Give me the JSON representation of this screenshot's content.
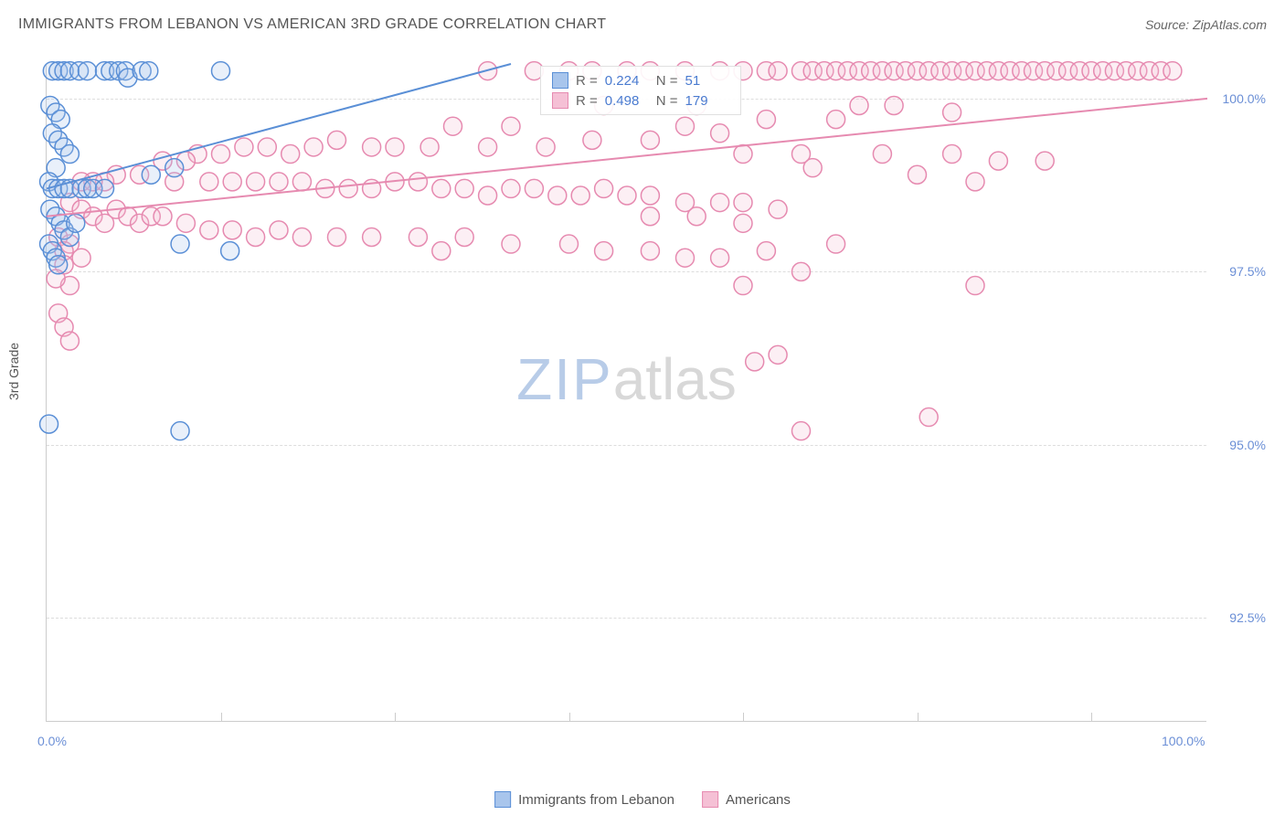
{
  "title": "IMMIGRANTS FROM LEBANON VS AMERICAN 3RD GRADE CORRELATION CHART",
  "source": "Source: ZipAtlas.com",
  "y_axis_label": "3rd Grade",
  "watermark": {
    "zip": "ZIP",
    "atlas": "atlas"
  },
  "chart": {
    "type": "scatter",
    "xlim": [
      0,
      100
    ],
    "ylim": [
      91,
      100.5
    ],
    "x_ticks": [
      0,
      100
    ],
    "x_tick_labels": [
      "0.0%",
      "100.0%"
    ],
    "x_minor_ticks": [
      15,
      30,
      45,
      60,
      75,
      90
    ],
    "y_ticks": [
      92.5,
      95.0,
      97.5,
      100.0
    ],
    "y_tick_labels": [
      "92.5%",
      "95.0%",
      "97.5%",
      "100.0%"
    ],
    "background_color": "#ffffff",
    "grid_color": "#dddddd",
    "marker_radius": 10,
    "marker_stroke_width": 1.5,
    "marker_fill_opacity": 0.25,
    "trend_line_width": 2
  },
  "series": [
    {
      "name": "Immigrants from Lebanon",
      "color_stroke": "#5a8fd6",
      "color_fill": "#a8c5ec",
      "R": "0.224",
      "N": "51",
      "trend": {
        "x1": 0,
        "y1": 98.7,
        "x2": 40,
        "y2": 100.5
      },
      "points": [
        [
          0.5,
          100.4
        ],
        [
          1,
          100.4
        ],
        [
          1.5,
          100.4
        ],
        [
          2,
          100.4
        ],
        [
          2.8,
          100.4
        ],
        [
          3.5,
          100.4
        ],
        [
          5,
          100.4
        ],
        [
          5.5,
          100.4
        ],
        [
          6.2,
          100.4
        ],
        [
          6.8,
          100.4
        ],
        [
          7,
          100.3
        ],
        [
          8.2,
          100.4
        ],
        [
          8.8,
          100.4
        ],
        [
          15,
          100.4
        ],
        [
          0.3,
          99.9
        ],
        [
          0.8,
          99.8
        ],
        [
          1.2,
          99.7
        ],
        [
          0.5,
          99.5
        ],
        [
          1,
          99.4
        ],
        [
          1.5,
          99.3
        ],
        [
          2,
          99.2
        ],
        [
          0.8,
          99.0
        ],
        [
          0.2,
          98.8
        ],
        [
          0.5,
          98.7
        ],
        [
          1,
          98.7
        ],
        [
          1.5,
          98.7
        ],
        [
          2,
          98.7
        ],
        [
          3,
          98.7
        ],
        [
          3.5,
          98.7
        ],
        [
          4,
          98.7
        ],
        [
          5,
          98.7
        ],
        [
          9,
          98.9
        ],
        [
          11,
          99.0
        ],
        [
          0.3,
          98.4
        ],
        [
          0.8,
          98.3
        ],
        [
          1.2,
          98.2
        ],
        [
          1.5,
          98.1
        ],
        [
          2,
          98.0
        ],
        [
          2.5,
          98.2
        ],
        [
          11.5,
          97.9
        ],
        [
          15.8,
          97.8
        ],
        [
          0.2,
          97.9
        ],
        [
          0.5,
          97.8
        ],
        [
          0.8,
          97.7
        ],
        [
          1,
          97.6
        ],
        [
          0.2,
          95.3
        ],
        [
          11.5,
          95.2
        ]
      ]
    },
    {
      "name": "Americans",
      "color_stroke": "#e68ab0",
      "color_fill": "#f5c0d5",
      "R": "0.498",
      "N": "179",
      "trend": {
        "x1": 0,
        "y1": 98.3,
        "x2": 100,
        "y2": 100.0
      },
      "points": [
        [
          38,
          100.4
        ],
        [
          42,
          100.4
        ],
        [
          45,
          100.4
        ],
        [
          47,
          100.4
        ],
        [
          50,
          100.4
        ],
        [
          52,
          100.4
        ],
        [
          55,
          100.4
        ],
        [
          58,
          100.4
        ],
        [
          60,
          100.4
        ],
        [
          62,
          100.4
        ],
        [
          63,
          100.4
        ],
        [
          65,
          100.4
        ],
        [
          66,
          100.4
        ],
        [
          67,
          100.4
        ],
        [
          68,
          100.4
        ],
        [
          69,
          100.4
        ],
        [
          70,
          100.4
        ],
        [
          71,
          100.4
        ],
        [
          72,
          100.4
        ],
        [
          73,
          100.4
        ],
        [
          74,
          100.4
        ],
        [
          75,
          100.4
        ],
        [
          76,
          100.4
        ],
        [
          77,
          100.4
        ],
        [
          78,
          100.4
        ],
        [
          79,
          100.4
        ],
        [
          80,
          100.4
        ],
        [
          81,
          100.4
        ],
        [
          82,
          100.4
        ],
        [
          83,
          100.4
        ],
        [
          84,
          100.4
        ],
        [
          85,
          100.4
        ],
        [
          86,
          100.4
        ],
        [
          87,
          100.4
        ],
        [
          88,
          100.4
        ],
        [
          89,
          100.4
        ],
        [
          90,
          100.4
        ],
        [
          91,
          100.4
        ],
        [
          92,
          100.4
        ],
        [
          93,
          100.4
        ],
        [
          94,
          100.4
        ],
        [
          95,
          100.4
        ],
        [
          96,
          100.4
        ],
        [
          97,
          100.4
        ],
        [
          48,
          99.9
        ],
        [
          56,
          99.9
        ],
        [
          70,
          99.9
        ],
        [
          73,
          99.9
        ],
        [
          78,
          99.8
        ],
        [
          62,
          99.7
        ],
        [
          68,
          99.7
        ],
        [
          55,
          99.6
        ],
        [
          40,
          99.6
        ],
        [
          35,
          99.6
        ],
        [
          58,
          99.5
        ],
        [
          47,
          99.4
        ],
        [
          52,
          99.4
        ],
        [
          43,
          99.3
        ],
        [
          38,
          99.3
        ],
        [
          33,
          99.3
        ],
        [
          30,
          99.3
        ],
        [
          28,
          99.3
        ],
        [
          25,
          99.4
        ],
        [
          23,
          99.3
        ],
        [
          21,
          99.2
        ],
        [
          19,
          99.3
        ],
        [
          17,
          99.3
        ],
        [
          15,
          99.2
        ],
        [
          13,
          99.2
        ],
        [
          12,
          99.1
        ],
        [
          10,
          99.1
        ],
        [
          60,
          99.2
        ],
        [
          65,
          99.2
        ],
        [
          72,
          99.2
        ],
        [
          78,
          99.2
        ],
        [
          82,
          99.1
        ],
        [
          86,
          99.1
        ],
        [
          66,
          99.0
        ],
        [
          8,
          98.9
        ],
        [
          6,
          98.9
        ],
        [
          5,
          98.8
        ],
        [
          4,
          98.8
        ],
        [
          3,
          98.8
        ],
        [
          11,
          98.8
        ],
        [
          14,
          98.8
        ],
        [
          16,
          98.8
        ],
        [
          18,
          98.8
        ],
        [
          20,
          98.8
        ],
        [
          22,
          98.8
        ],
        [
          24,
          98.7
        ],
        [
          26,
          98.7
        ],
        [
          28,
          98.7
        ],
        [
          30,
          98.8
        ],
        [
          32,
          98.8
        ],
        [
          34,
          98.7
        ],
        [
          36,
          98.7
        ],
        [
          38,
          98.6
        ],
        [
          40,
          98.7
        ],
        [
          42,
          98.7
        ],
        [
          44,
          98.6
        ],
        [
          46,
          98.6
        ],
        [
          48,
          98.7
        ],
        [
          50,
          98.6
        ],
        [
          52,
          98.6
        ],
        [
          55,
          98.5
        ],
        [
          58,
          98.5
        ],
        [
          60,
          98.5
        ],
        [
          63,
          98.4
        ],
        [
          75,
          98.9
        ],
        [
          80,
          98.8
        ],
        [
          2,
          98.5
        ],
        [
          3,
          98.4
        ],
        [
          4,
          98.3
        ],
        [
          5,
          98.2
        ],
        [
          6,
          98.4
        ],
        [
          7,
          98.3
        ],
        [
          8,
          98.2
        ],
        [
          9,
          98.3
        ],
        [
          10,
          98.3
        ],
        [
          12,
          98.2
        ],
        [
          14,
          98.1
        ],
        [
          16,
          98.1
        ],
        [
          18,
          98.0
        ],
        [
          20,
          98.1
        ],
        [
          22,
          98.0
        ],
        [
          25,
          98.0
        ],
        [
          28,
          98.0
        ],
        [
          32,
          98.0
        ],
        [
          36,
          98.0
        ],
        [
          40,
          97.9
        ],
        [
          45,
          97.9
        ],
        [
          48,
          97.8
        ],
        [
          52,
          97.8
        ],
        [
          55,
          97.7
        ],
        [
          58,
          97.7
        ],
        [
          62,
          97.8
        ],
        [
          68,
          97.9
        ],
        [
          52,
          98.3
        ],
        [
          56,
          98.3
        ],
        [
          60,
          98.2
        ],
        [
          1,
          98.0
        ],
        [
          2,
          97.9
        ],
        [
          1.5,
          97.8
        ],
        [
          3,
          97.7
        ],
        [
          34,
          97.8
        ],
        [
          65,
          97.5
        ],
        [
          60,
          97.3
        ],
        [
          80,
          97.3
        ],
        [
          2,
          97.3
        ],
        [
          1.5,
          97.6
        ],
        [
          0.8,
          97.4
        ],
        [
          1,
          96.9
        ],
        [
          1.5,
          96.7
        ],
        [
          2,
          96.5
        ],
        [
          63,
          96.3
        ],
        [
          61,
          96.2
        ],
        [
          65,
          95.2
        ],
        [
          76,
          95.4
        ]
      ]
    }
  ],
  "legend": {
    "items": [
      {
        "label": "Immigrants from Lebanon",
        "fill": "#a8c5ec",
        "stroke": "#5a8fd6"
      },
      {
        "label": "Americans",
        "fill": "#f5c0d5",
        "stroke": "#e68ab0"
      }
    ]
  }
}
